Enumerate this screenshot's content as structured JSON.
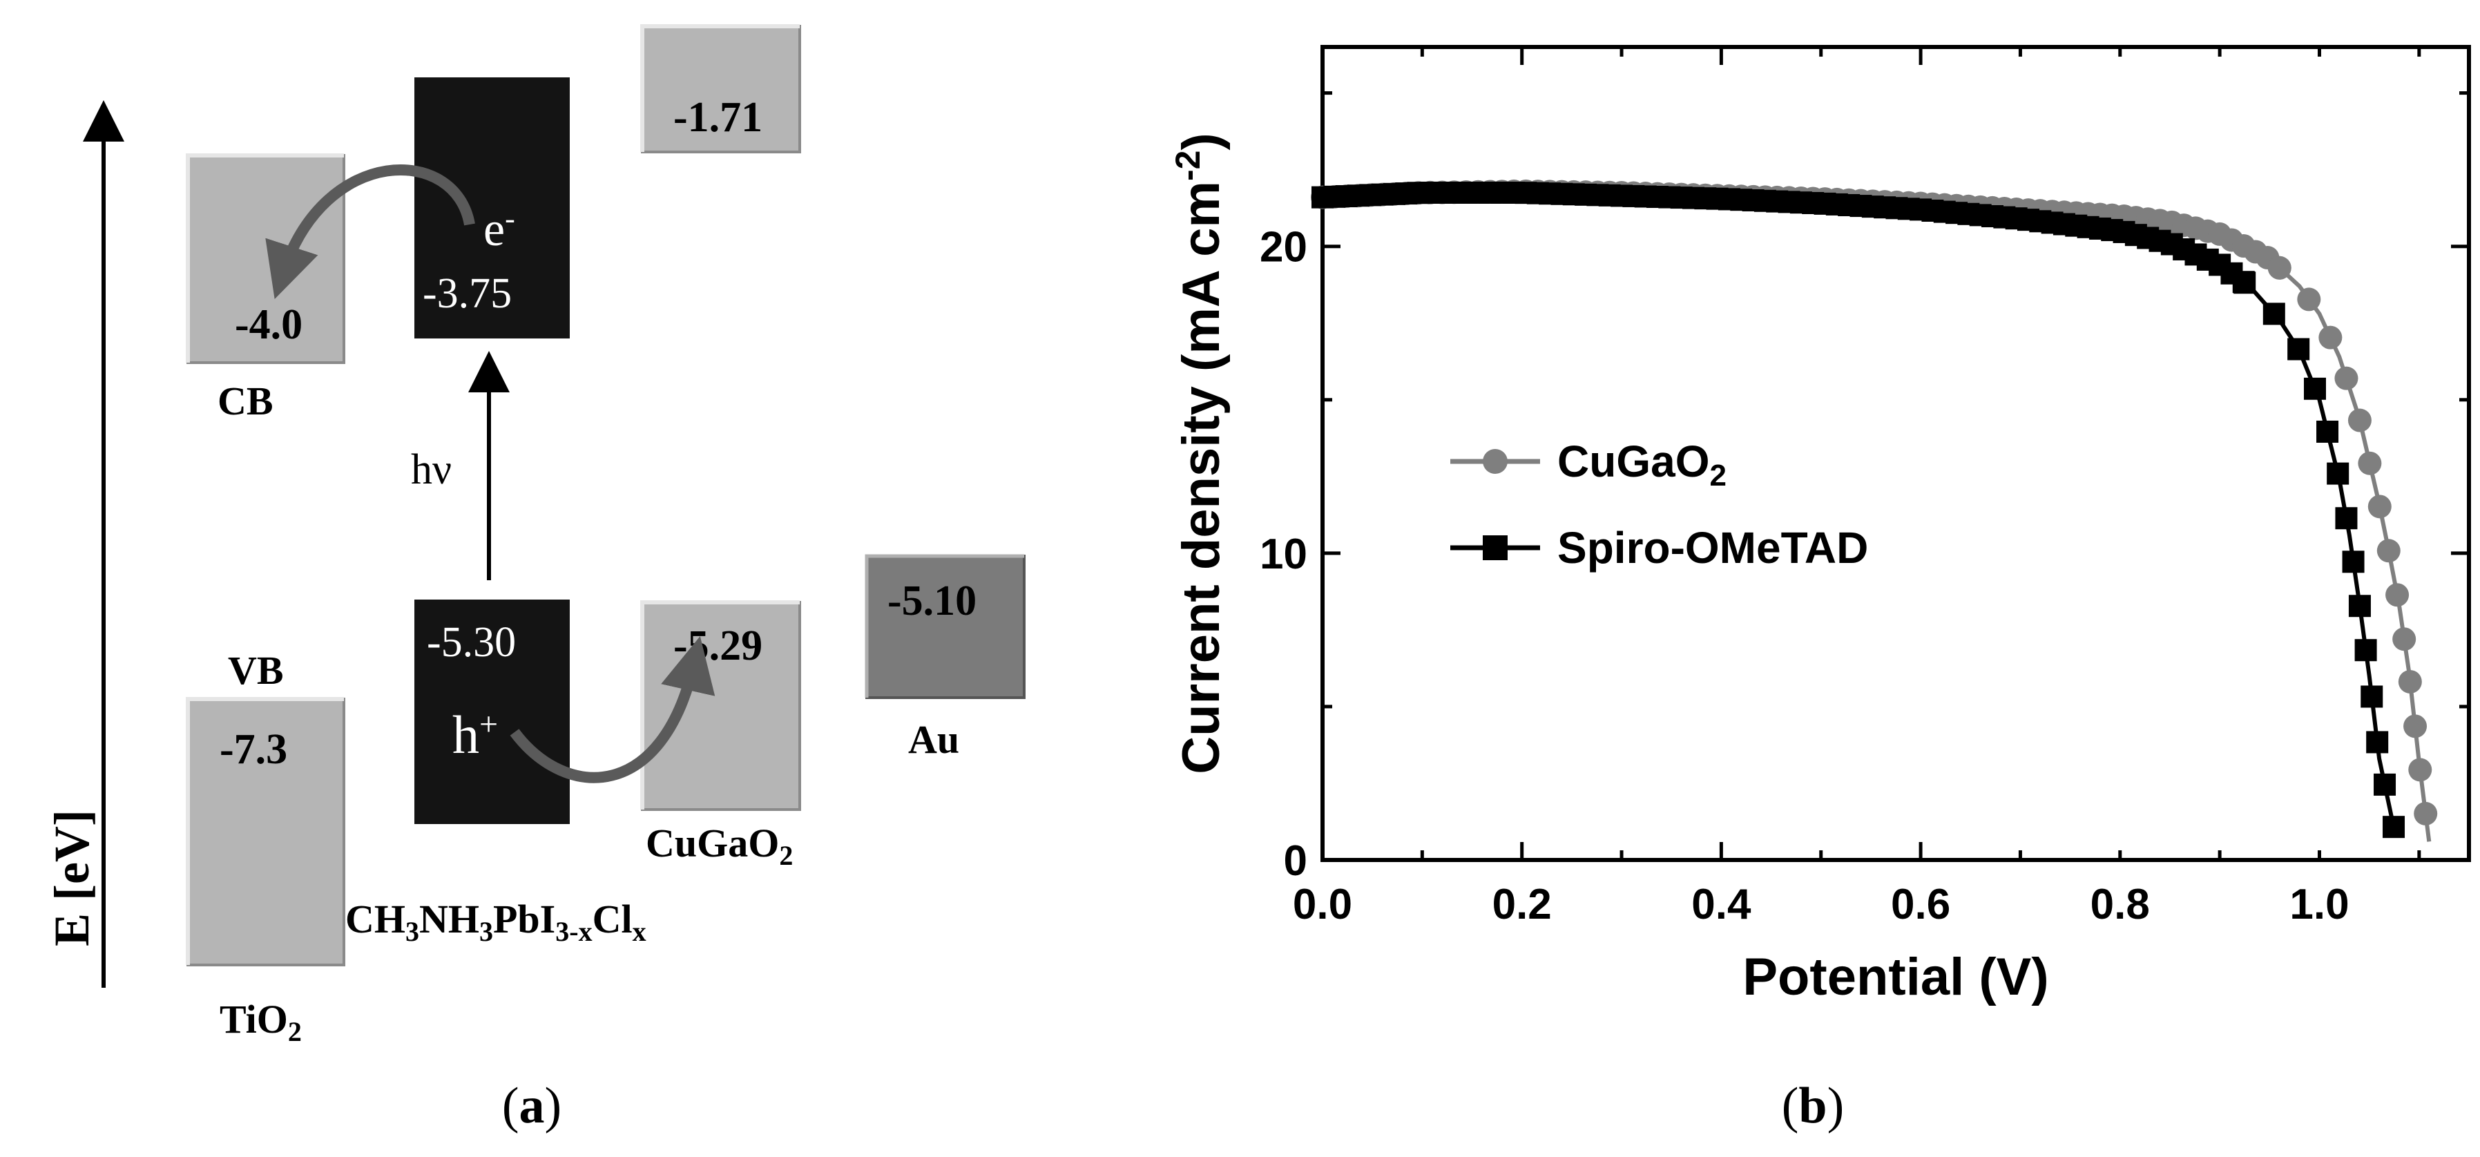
{
  "panel_a": {
    "caption_open": "(",
    "caption_letter": "a",
    "caption_close": ")",
    "axis_label": "E [eV]",
    "tio2": {
      "cb_value": "-4.0",
      "vb_value": "-7.3",
      "cb_label": "CB",
      "vb_label": "VB",
      "name_base": "TiO",
      "name_sub": "2"
    },
    "perovskite": {
      "cb_value": "-3.75",
      "vb_value": "-5.30",
      "electron_base": "e",
      "electron_sup": "-",
      "hole_base": "h",
      "hole_sup": "+",
      "photon": "hν",
      "name": [
        {
          "t": "CH",
          "s": false
        },
        {
          "t": "3",
          "s": true
        },
        {
          "t": "NH",
          "s": false
        },
        {
          "t": "3",
          "s": true
        },
        {
          "t": "PbI",
          "s": false
        },
        {
          "t": "3-x",
          "s": true
        },
        {
          "t": "Cl",
          "s": false
        },
        {
          "t": "x",
          "s": true
        }
      ]
    },
    "cugao2": {
      "cb_value": "-1.71",
      "vb_value": "-5.29",
      "name_base": "CuGaO",
      "name_sub": "2"
    },
    "au": {
      "value": "-5.10",
      "name": "Au"
    },
    "colors": {
      "light_box": "#b5b5b5",
      "dark_box": "#141414",
      "au_box": "#7b7b7b",
      "arrow": "#5a5a5a"
    }
  },
  "panel_b": {
    "caption_open": "(",
    "caption_letter": "b",
    "caption_close": ")",
    "legend": [
      {
        "label_base": "CuGaO",
        "label_sub": "2",
        "marker": "circle",
        "color": "#7f7f7f"
      },
      {
        "label_base": "Spiro-OMeTAD",
        "label_sub": "",
        "marker": "square",
        "color": "#000000"
      }
    ]
  },
  "chart_data": {
    "type": "line",
    "xlabel": "Potential (V)",
    "ylabel_base": "Current density (mA cm",
    "ylabel_sup": "-2",
    "ylabel_close": ")",
    "xlim": [
      0,
      1.15
    ],
    "ylim": [
      0,
      26.5
    ],
    "xticks": [
      0.0,
      0.2,
      0.4,
      0.6,
      0.8,
      1.0
    ],
    "xtick_labels": [
      "0.0",
      "0.2",
      "0.4",
      "0.6",
      "0.8",
      "1.0"
    ],
    "yticks": [
      0,
      10,
      20
    ],
    "ytick_labels": [
      "0",
      "10",
      "20"
    ],
    "legend_position": "center-left",
    "series": [
      {
        "name": "CuGaO2",
        "color": "#7f7f7f",
        "marker": "circle",
        "points": [
          [
            0.0,
            21.6
          ],
          [
            0.1,
            21.75
          ],
          [
            0.2,
            21.8
          ],
          [
            0.3,
            21.75
          ],
          [
            0.4,
            21.65
          ],
          [
            0.5,
            21.55
          ],
          [
            0.6,
            21.4
          ],
          [
            0.7,
            21.2
          ],
          [
            0.8,
            21.0
          ],
          [
            0.85,
            20.8
          ],
          [
            0.9,
            20.4
          ],
          [
            0.95,
            19.6
          ],
          [
            0.98,
            18.7
          ],
          [
            1.0,
            17.8
          ],
          [
            1.02,
            16.4
          ],
          [
            1.04,
            14.4
          ],
          [
            1.06,
            11.6
          ],
          [
            1.07,
            10.0
          ],
          [
            1.08,
            8.3
          ],
          [
            1.09,
            6.1
          ],
          [
            1.1,
            3.2
          ],
          [
            1.11,
            0.6
          ]
        ]
      },
      {
        "name": "Spiro-OMeTAD",
        "color": "#000000",
        "marker": "square",
        "points": [
          [
            0.0,
            21.6
          ],
          [
            0.1,
            21.75
          ],
          [
            0.2,
            21.75
          ],
          [
            0.3,
            21.65
          ],
          [
            0.4,
            21.55
          ],
          [
            0.5,
            21.4
          ],
          [
            0.6,
            21.2
          ],
          [
            0.7,
            20.9
          ],
          [
            0.8,
            20.5
          ],
          [
            0.85,
            20.1
          ],
          [
            0.9,
            19.4
          ],
          [
            0.93,
            18.7
          ],
          [
            0.96,
            17.6
          ],
          [
            0.98,
            16.6
          ],
          [
            1.0,
            15.0
          ],
          [
            1.02,
            12.4
          ],
          [
            1.03,
            10.6
          ],
          [
            1.04,
            8.4
          ],
          [
            1.05,
            6.0
          ],
          [
            1.06,
            3.3
          ],
          [
            1.075,
            1.0
          ]
        ]
      }
    ]
  }
}
